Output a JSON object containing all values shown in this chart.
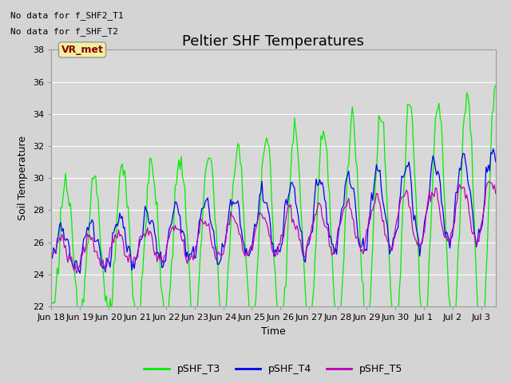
{
  "title": "Peltier SHF Temperatures",
  "xlabel": "Time",
  "ylabel": "Soil Temperature",
  "ylim": [
    22,
    38
  ],
  "annotations": [
    "No data for f_SHF2_T1",
    "No data for f_SHF_T2"
  ],
  "vr_met_label": "VR_met",
  "legend": [
    "pSHF_T3",
    "pSHF_T4",
    "pSHF_T5"
  ],
  "line_colors": [
    "#00ee00",
    "#0000ee",
    "#bb00bb"
  ],
  "x_tick_labels": [
    "Jun 18",
    "Jun 19",
    "Jun 20",
    "Jun 21",
    "Jun 22",
    "Jun 23",
    "Jun 24",
    "Jun 25",
    "Jun 26",
    "Jun 27",
    "Jun 28",
    "Jun 29",
    "Jun 30",
    "Jul 1",
    "Jul 2",
    "Jul 3"
  ],
  "background_color": "#d8d8d8",
  "plot_bg_color": "#d8d8d8",
  "title_fontsize": 13,
  "label_fontsize": 9,
  "tick_fontsize": 8,
  "legend_fontsize": 9,
  "note_fontsize": 8
}
